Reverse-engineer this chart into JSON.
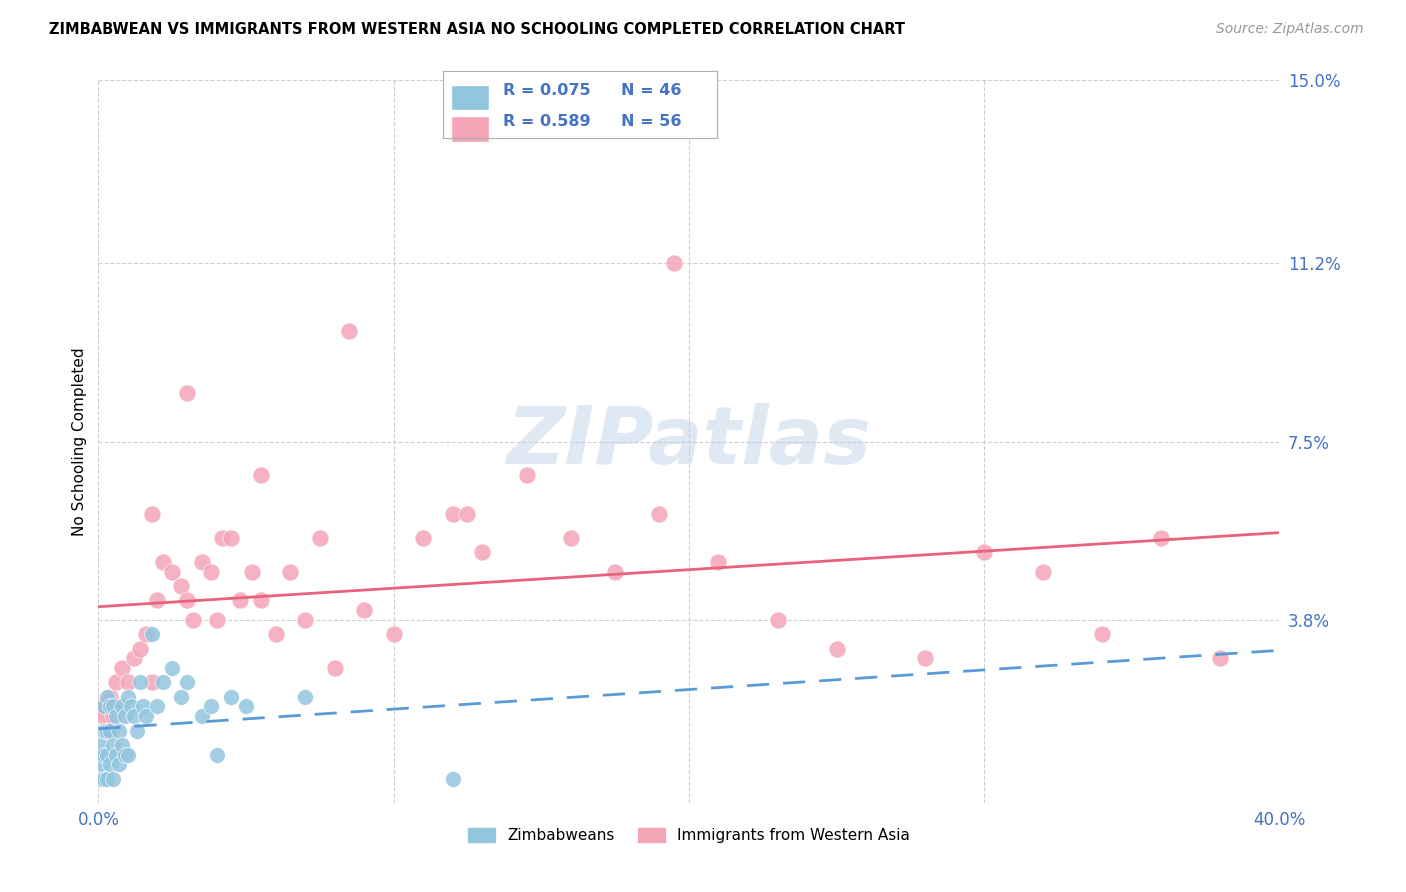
{
  "title": "ZIMBABWEAN VS IMMIGRANTS FROM WESTERN ASIA NO SCHOOLING COMPLETED CORRELATION CHART",
  "source": "Source: ZipAtlas.com",
  "ylabel": "No Schooling Completed",
  "xlim": [
    0.0,
    0.4
  ],
  "ylim": [
    0.0,
    0.15
  ],
  "xticks": [
    0.0,
    0.1,
    0.2,
    0.3,
    0.4
  ],
  "xticklabels": [
    "0.0%",
    "",
    "",
    "",
    "40.0%"
  ],
  "yticks": [
    0.0,
    0.038,
    0.075,
    0.112,
    0.15
  ],
  "yticklabels": [
    "",
    "3.8%",
    "7.5%",
    "11.2%",
    "15.0%"
  ],
  "blue_color": "#92c5de",
  "pink_color": "#f4a5b8",
  "blue_line_color": "#5b9bd5",
  "pink_line_color": "#e8637a",
  "tick_color": "#4472c4",
  "grid_color": "#d0d0d0",
  "watermark": "ZIPatlas",
  "zim_x": [
    0.001,
    0.001,
    0.001,
    0.002,
    0.002,
    0.002,
    0.002,
    0.003,
    0.003,
    0.003,
    0.003,
    0.004,
    0.004,
    0.004,
    0.005,
    0.005,
    0.005,
    0.006,
    0.006,
    0.007,
    0.007,
    0.008,
    0.008,
    0.009,
    0.009,
    0.01,
    0.01,
    0.011,
    0.012,
    0.013,
    0.014,
    0.015,
    0.016,
    0.018,
    0.02,
    0.022,
    0.025,
    0.028,
    0.03,
    0.035,
    0.038,
    0.04,
    0.045,
    0.05,
    0.07,
    0.12
  ],
  "zim_y": [
    0.005,
    0.008,
    0.012,
    0.005,
    0.01,
    0.015,
    0.02,
    0.005,
    0.01,
    0.015,
    0.022,
    0.008,
    0.015,
    0.02,
    0.005,
    0.012,
    0.02,
    0.01,
    0.018,
    0.008,
    0.015,
    0.012,
    0.02,
    0.01,
    0.018,
    0.01,
    0.022,
    0.02,
    0.018,
    0.015,
    0.025,
    0.02,
    0.018,
    0.035,
    0.02,
    0.025,
    0.028,
    0.022,
    0.025,
    0.018,
    0.02,
    0.01,
    0.022,
    0.02,
    0.022,
    0.005
  ],
  "wa_x": [
    0.001,
    0.002,
    0.003,
    0.004,
    0.005,
    0.006,
    0.008,
    0.01,
    0.012,
    0.014,
    0.016,
    0.018,
    0.02,
    0.022,
    0.025,
    0.028,
    0.03,
    0.032,
    0.035,
    0.038,
    0.04,
    0.042,
    0.045,
    0.048,
    0.052,
    0.055,
    0.06,
    0.065,
    0.07,
    0.075,
    0.08,
    0.09,
    0.1,
    0.11,
    0.12,
    0.13,
    0.145,
    0.16,
    0.175,
    0.19,
    0.21,
    0.23,
    0.25,
    0.28,
    0.3,
    0.32,
    0.34,
    0.36,
    0.38,
    0.008,
    0.018,
    0.03,
    0.055,
    0.085,
    0.125,
    0.195
  ],
  "wa_y": [
    0.02,
    0.018,
    0.015,
    0.022,
    0.018,
    0.025,
    0.028,
    0.025,
    0.03,
    0.032,
    0.035,
    0.06,
    0.042,
    0.05,
    0.048,
    0.045,
    0.042,
    0.038,
    0.05,
    0.048,
    0.038,
    0.055,
    0.055,
    0.042,
    0.048,
    0.042,
    0.035,
    0.048,
    0.038,
    0.055,
    0.028,
    0.04,
    0.035,
    0.055,
    0.06,
    0.052,
    0.068,
    0.055,
    0.048,
    0.06,
    0.05,
    0.038,
    0.032,
    0.03,
    0.052,
    0.048,
    0.035,
    0.055,
    0.03,
    0.02,
    0.025,
    0.085,
    0.068,
    0.098,
    0.06,
    0.112
  ],
  "legend_entries": [
    {
      "r": "R = 0.075",
      "n": "N = 46",
      "color": "#92c5de"
    },
    {
      "r": "R = 0.589",
      "n": "N = 56",
      "color": "#f4a5b8"
    }
  ]
}
